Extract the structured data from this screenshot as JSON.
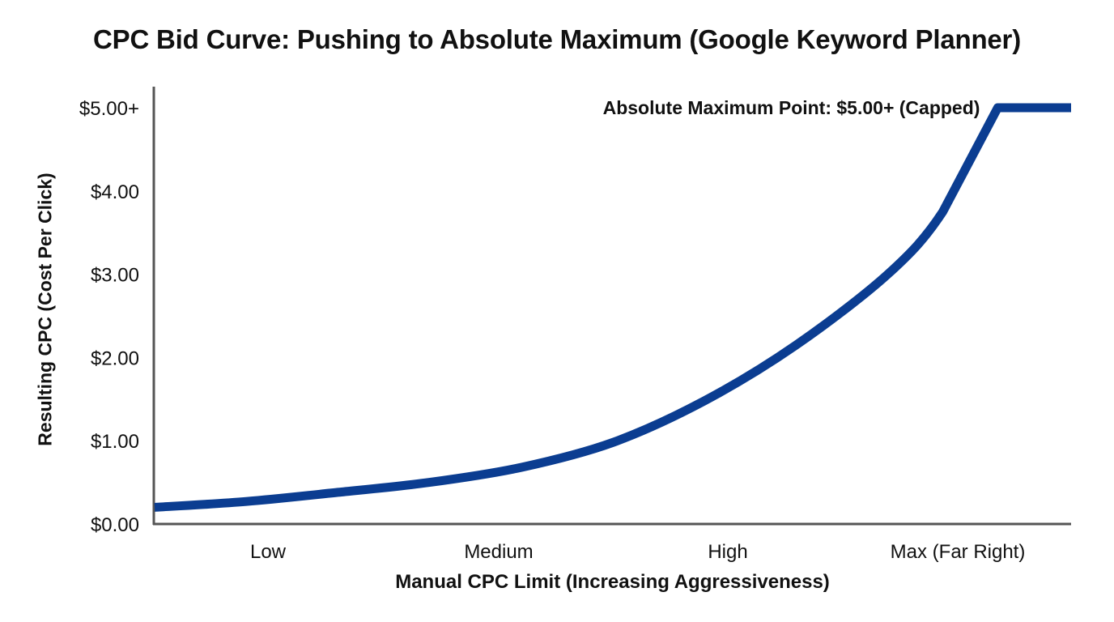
{
  "chart_data": {
    "type": "line",
    "title": "CPC Bid Curve: Pushing to Absolute Maximum (Google Keyword Planner)",
    "xlabel": "Manual CPC Limit (Increasing Aggressiveness)",
    "ylabel": "Resulting CPC (Cost Per Click)",
    "categories": [
      "Low",
      "Medium",
      "High",
      "Max (Far Right)"
    ],
    "y_tick_labels": [
      "$0.00",
      "$1.00",
      "$2.00",
      "$3.00",
      "$4.00",
      "$5.00+"
    ],
    "ylim": [
      0,
      5
    ],
    "grid": false,
    "legend": "none",
    "series": [
      {
        "color": "#0b3d91",
        "points": [
          {
            "x": 0.0,
            "y": 0.2
          },
          {
            "x": 0.5,
            "y": 0.27
          },
          {
            "x": 1.0,
            "y": 0.38
          },
          {
            "x": 1.5,
            "y": 0.5
          },
          {
            "x": 2.0,
            "y": 0.68
          },
          {
            "x": 2.5,
            "y": 0.98
          },
          {
            "x": 3.0,
            "y": 1.48
          },
          {
            "x": 3.5,
            "y": 2.15
          },
          {
            "x": 4.0,
            "y": 3.0
          },
          {
            "x": 4.3,
            "y": 3.75
          },
          {
            "x": 4.6,
            "y": 5.0
          },
          {
            "x": 5.0,
            "y": 5.0
          }
        ]
      }
    ],
    "annotations": [
      {
        "text": "Absolute Maximum Point: $5.00+ (Capped)",
        "x": 4.6,
        "y": 5.0
      }
    ]
  }
}
